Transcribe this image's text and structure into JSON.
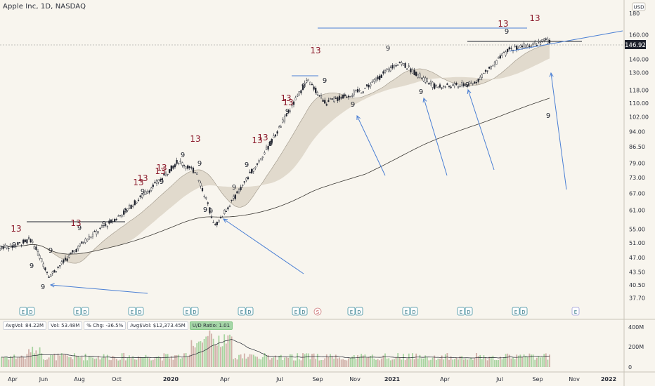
{
  "header": {
    "title": "Apple Inc, 1D, NASDAQ",
    "currency": "USD"
  },
  "price": {
    "last": "146.92"
  },
  "volume_stats": {
    "avgvol": "AvgVol: 84.22M",
    "vol": "Vol: 53.48M",
    "chg": "% Chg: -36.5%",
    "avgdvol": "Avg$Vol: $12,373.45M",
    "udratio": "U/D Ratio: 1.01"
  },
  "colors": {
    "up": "#1e222d",
    "down": "#1e222d",
    "ma_band": "#d9d0c1",
    "trendline": "#4a7fd4",
    "setup13": "#8b1a2b",
    "volume_up": "#a8d4a0",
    "volume_down": "#d0b0a8"
  },
  "chart_data": {
    "type": "candlestick",
    "title": "Apple Inc, 1D, NASDAQ",
    "y_scale": "log",
    "ylim": [
      35.5,
      185
    ],
    "y_ticks": [
      "180",
      "160.00",
      "140.00",
      "130.00",
      "118.00",
      "110.00",
      "102.00",
      "94.00",
      "86.50",
      "79.00",
      "73.00",
      "67.00",
      "61.00",
      "55.00",
      "51.00",
      "47.00",
      "43.50",
      "40.50",
      "37.70"
    ],
    "x_ticks": [
      "Apr",
      "Jun",
      "Aug",
      "Oct",
      "2020",
      "Apr",
      "Jul",
      "Sep",
      "Nov",
      "2021",
      "Apr",
      "Jul",
      "Sep",
      "Nov",
      "2022"
    ],
    "price_anchor_points": [
      {
        "date": "2019-04",
        "close": 50
      },
      {
        "date": "2019-05",
        "close": 52
      },
      {
        "date": "2019-06",
        "close": 42.5
      },
      {
        "date": "2019-08",
        "close": 52
      },
      {
        "date": "2019-10",
        "close": 60
      },
      {
        "date": "2019-12",
        "close": 72
      },
      {
        "date": "2020-01",
        "close": 80
      },
      {
        "date": "2020-02",
        "close": 75
      },
      {
        "date": "2020-03",
        "close": 56
      },
      {
        "date": "2020-04",
        "close": 65
      },
      {
        "date": "2020-06",
        "close": 88
      },
      {
        "date": "2020-08",
        "close": 125
      },
      {
        "date": "2020-09",
        "close": 110
      },
      {
        "date": "2020-11",
        "close": 118
      },
      {
        "date": "2021-01",
        "close": 138
      },
      {
        "date": "2021-03",
        "close": 120
      },
      {
        "date": "2021-05",
        "close": 122
      },
      {
        "date": "2021-07",
        "close": 148
      },
      {
        "date": "2021-09",
        "close": 155
      },
      {
        "date": "2021-10",
        "close": 146.92
      }
    ],
    "volume_axis": [
      "400M",
      "200M",
      "0"
    ],
    "annotations": {
      "nines": [
        "9",
        "9",
        "9",
        "9",
        "9",
        "9",
        "9",
        "9",
        "9",
        "9",
        "9",
        "9",
        "9",
        "9",
        "9",
        "9",
        "9",
        "9",
        "9",
        "9",
        "9",
        "9",
        "9",
        "9"
      ],
      "thirteens": [
        "13",
        "13",
        "13",
        "13",
        "13",
        "13",
        "13",
        "13",
        "13",
        "13",
        "13",
        "13",
        "13",
        "13"
      ],
      "earnings": [
        "E",
        "D",
        "E",
        "D",
        "E",
        "D",
        "E",
        "D",
        "E",
        "D",
        "E",
        "D",
        "S",
        "E",
        "D",
        "E",
        "D",
        "E",
        "D",
        "E",
        "D",
        "E"
      ]
    }
  }
}
